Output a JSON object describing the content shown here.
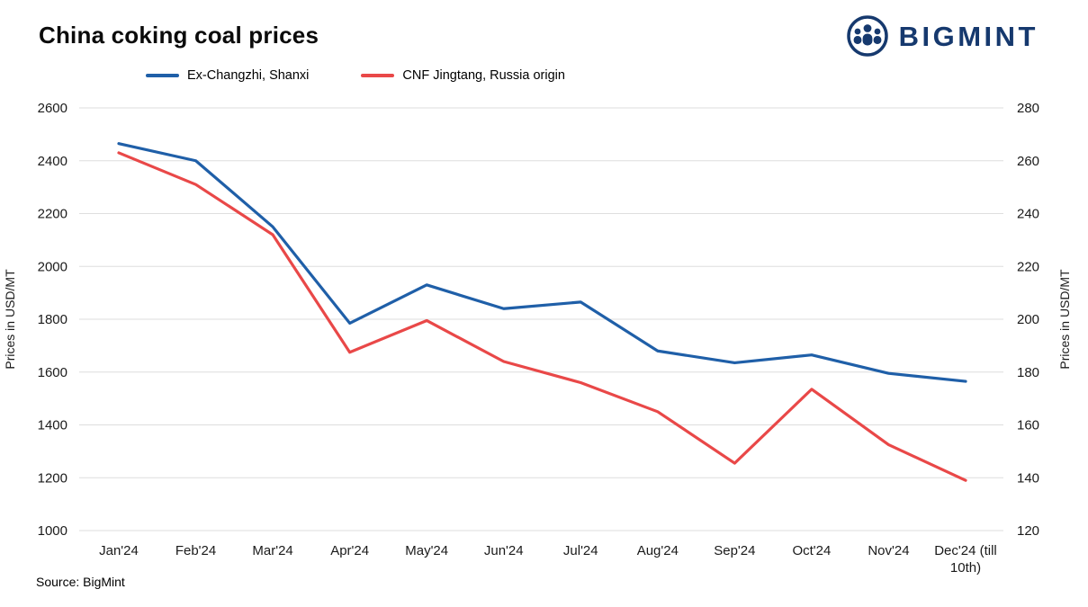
{
  "header": {
    "title": "China coking coal prices",
    "logo_text": "BIGMINT"
  },
  "source": "Source: BigMint",
  "chart_data": {
    "type": "line",
    "title": "China coking coal prices",
    "categories": [
      "Jan'24",
      "Feb'24",
      "Mar'24",
      "Apr'24",
      "May'24",
      "Jun'24",
      "Jul'24",
      "Aug'24",
      "Sep'24",
      "Oct'24",
      "Nov'24",
      "Dec'24 (till 10th)"
    ],
    "series": [
      {
        "name": "Ex-Changzhi, Shanxi",
        "axis": "left",
        "color": "#1f5fa8",
        "values": [
          2465,
          2400,
          2150,
          1785,
          1930,
          1840,
          1865,
          1680,
          1635,
          1665,
          1595,
          1565
        ]
      },
      {
        "name": "CNF Jingtang, Russia origin",
        "axis": "right",
        "color": "#e94848",
        "values": [
          263,
          251,
          232,
          187.5,
          199.5,
          184,
          176,
          165,
          145.5,
          173.5,
          152.5,
          139
        ]
      }
    ],
    "left_axis": {
      "label": "Prices in USD/MT",
      "min": 1000,
      "max": 2600,
      "ticks": [
        1000,
        1200,
        1400,
        1600,
        1800,
        2000,
        2200,
        2400,
        2600
      ]
    },
    "right_axis": {
      "label": "Prices in USD/MT",
      "min": 120,
      "max": 280,
      "ticks": [
        120,
        140,
        160,
        180,
        200,
        220,
        240,
        260,
        280
      ]
    },
    "grid": true,
    "legend_position": "top",
    "gridline_color": "#dedede"
  }
}
